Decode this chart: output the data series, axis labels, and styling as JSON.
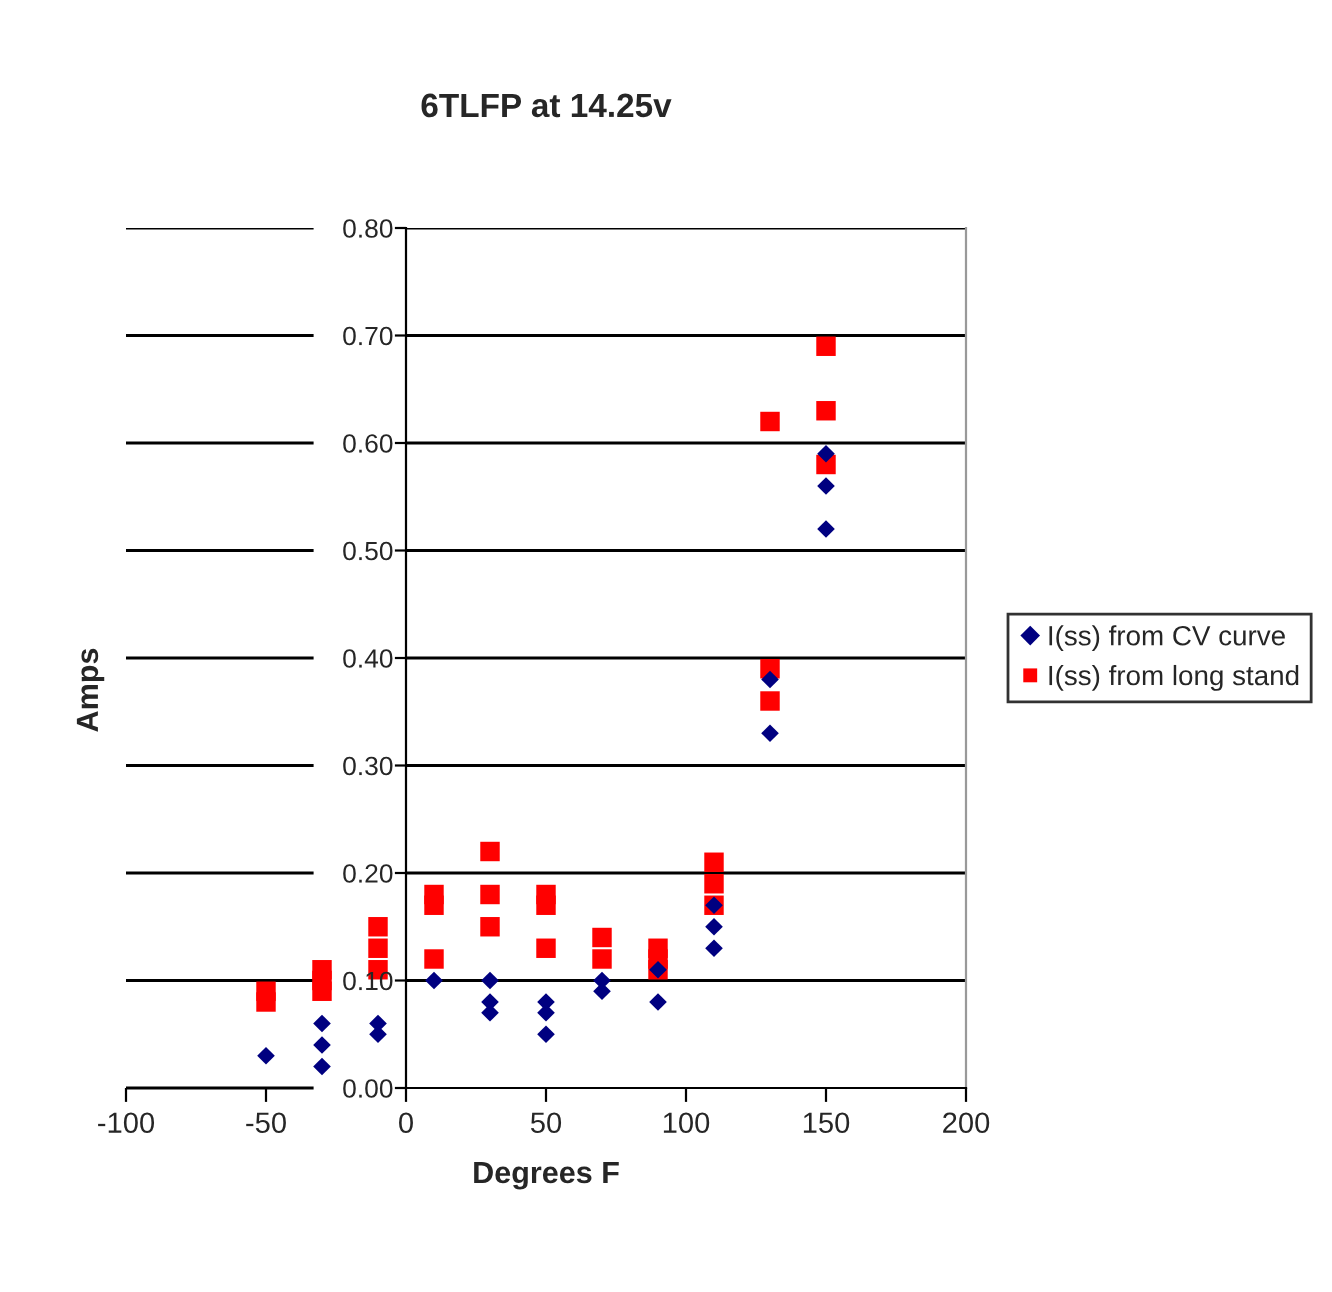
{
  "chart_data": {
    "type": "scatter",
    "title": "6TLFP at 14.25v",
    "xlabel": "Degrees F",
    "ylabel": "Amps",
    "xlim": [
      -100,
      200
    ],
    "xticks": [
      -100,
      -50,
      0,
      50,
      100,
      150,
      200
    ],
    "ylim": [
      0,
      0.8
    ],
    "yticks": [
      {
        "value": 0,
        "label": "0.00"
      },
      {
        "value": 0.1,
        "label": "0.10"
      },
      {
        "value": 0.2,
        "label": "0.20"
      },
      {
        "value": 0.3,
        "label": "0.30"
      },
      {
        "value": 0.4,
        "label": "0.40"
      },
      {
        "value": 0.5,
        "label": "0.50"
      },
      {
        "value": 0.6,
        "label": "0.60"
      },
      {
        "value": 0.7,
        "label": "0.70"
      },
      {
        "value": 0.8,
        "label": "0.80"
      }
    ],
    "grid": "y",
    "legend": "right",
    "series": [
      {
        "name": "I(ss) from CV curve",
        "color": "#000080",
        "marker": "diamond",
        "x": [
          -50,
          -30,
          -30,
          -30,
          -10,
          -10,
          10,
          30,
          30,
          30,
          50,
          50,
          50,
          70,
          70,
          90,
          90,
          110,
          110,
          110,
          130,
          130,
          150,
          150,
          150
        ],
        "values": [
          0.03,
          0.06,
          0.04,
          0.02,
          0.06,
          0.05,
          0.1,
          0.1,
          0.08,
          0.07,
          0.08,
          0.07,
          0.05,
          0.1,
          0.09,
          0.11,
          0.08,
          0.17,
          0.15,
          0.13,
          0.38,
          0.33,
          0.59,
          0.56,
          0.52
        ]
      },
      {
        "name": "I(ss) from long stand",
        "color": "#ff0000",
        "marker": "square",
        "x": [
          -50,
          -50,
          -30,
          -30,
          -30,
          -10,
          -10,
          -10,
          10,
          10,
          10,
          30,
          30,
          30,
          50,
          50,
          50,
          70,
          70,
          90,
          90,
          90,
          110,
          110,
          110,
          130,
          130,
          130,
          150,
          150,
          150
        ],
        "values": [
          0.09,
          0.08,
          0.11,
          0.1,
          0.09,
          0.15,
          0.13,
          0.11,
          0.18,
          0.17,
          0.12,
          0.22,
          0.18,
          0.15,
          0.18,
          0.17,
          0.13,
          0.14,
          0.12,
          0.13,
          0.12,
          0.11,
          0.21,
          0.19,
          0.17,
          0.62,
          0.39,
          0.36,
          0.69,
          0.63,
          0.58
        ]
      }
    ]
  }
}
